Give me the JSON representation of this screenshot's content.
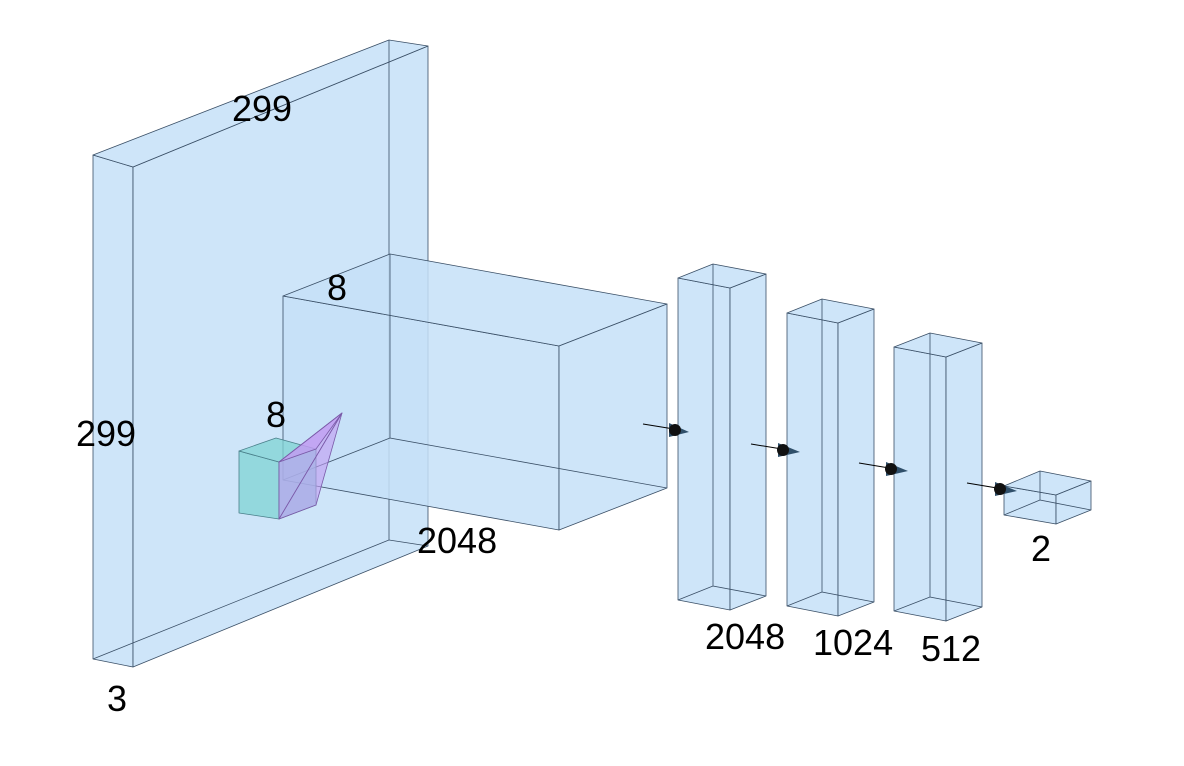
{
  "colors": {
    "layer_fill": "#c6e0f8",
    "kernel_cube": "#7fd3d3",
    "kernel_pyramid": "#c29bf2",
    "outline": "#3a4f66",
    "arrow_head": "#2f4f6a"
  },
  "layers": [
    {
      "name": "input",
      "labels": {
        "height": "299",
        "width": "299",
        "depth": "3"
      }
    },
    {
      "name": "feature-map",
      "labels": {
        "height": "8",
        "width": "8",
        "depth": "2048"
      }
    },
    {
      "name": "dense-1",
      "labels": {
        "units": "2048"
      }
    },
    {
      "name": "dense-2",
      "labels": {
        "units": "1024"
      }
    },
    {
      "name": "dense-3",
      "labels": {
        "units": "512"
      }
    },
    {
      "name": "output",
      "labels": {
        "units": "2"
      }
    }
  ]
}
